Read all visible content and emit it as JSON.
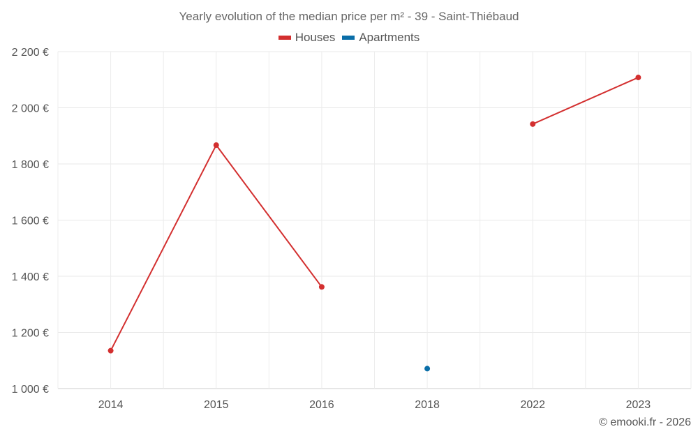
{
  "chart_data": {
    "type": "line",
    "title": "Yearly evolution of the median price per m² - 39 - Saint-Thiébaud",
    "categories": [
      "2014",
      "2015",
      "2016",
      "2018",
      "2022",
      "2023"
    ],
    "ylim": [
      1000,
      2200
    ],
    "y_ticks": [
      1000,
      1200,
      1400,
      1600,
      1800,
      2000,
      2200
    ],
    "y_tick_labels": [
      "1 000 €",
      "1 200 €",
      "1 400 €",
      "1 600 €",
      "1 800 €",
      "2 000 €",
      "2 200 €"
    ],
    "grid": true,
    "legend_position": "top-center",
    "series": [
      {
        "name": "Houses",
        "color": "#d32f2f",
        "values": [
          1135,
          1867,
          1362,
          null,
          1942,
          2108
        ]
      },
      {
        "name": "Apartments",
        "color": "#0a6ea8",
        "values": [
          null,
          null,
          null,
          1071,
          null,
          null
        ]
      }
    ]
  },
  "footer": {
    "credit": "© emooki.fr - 2026"
  }
}
